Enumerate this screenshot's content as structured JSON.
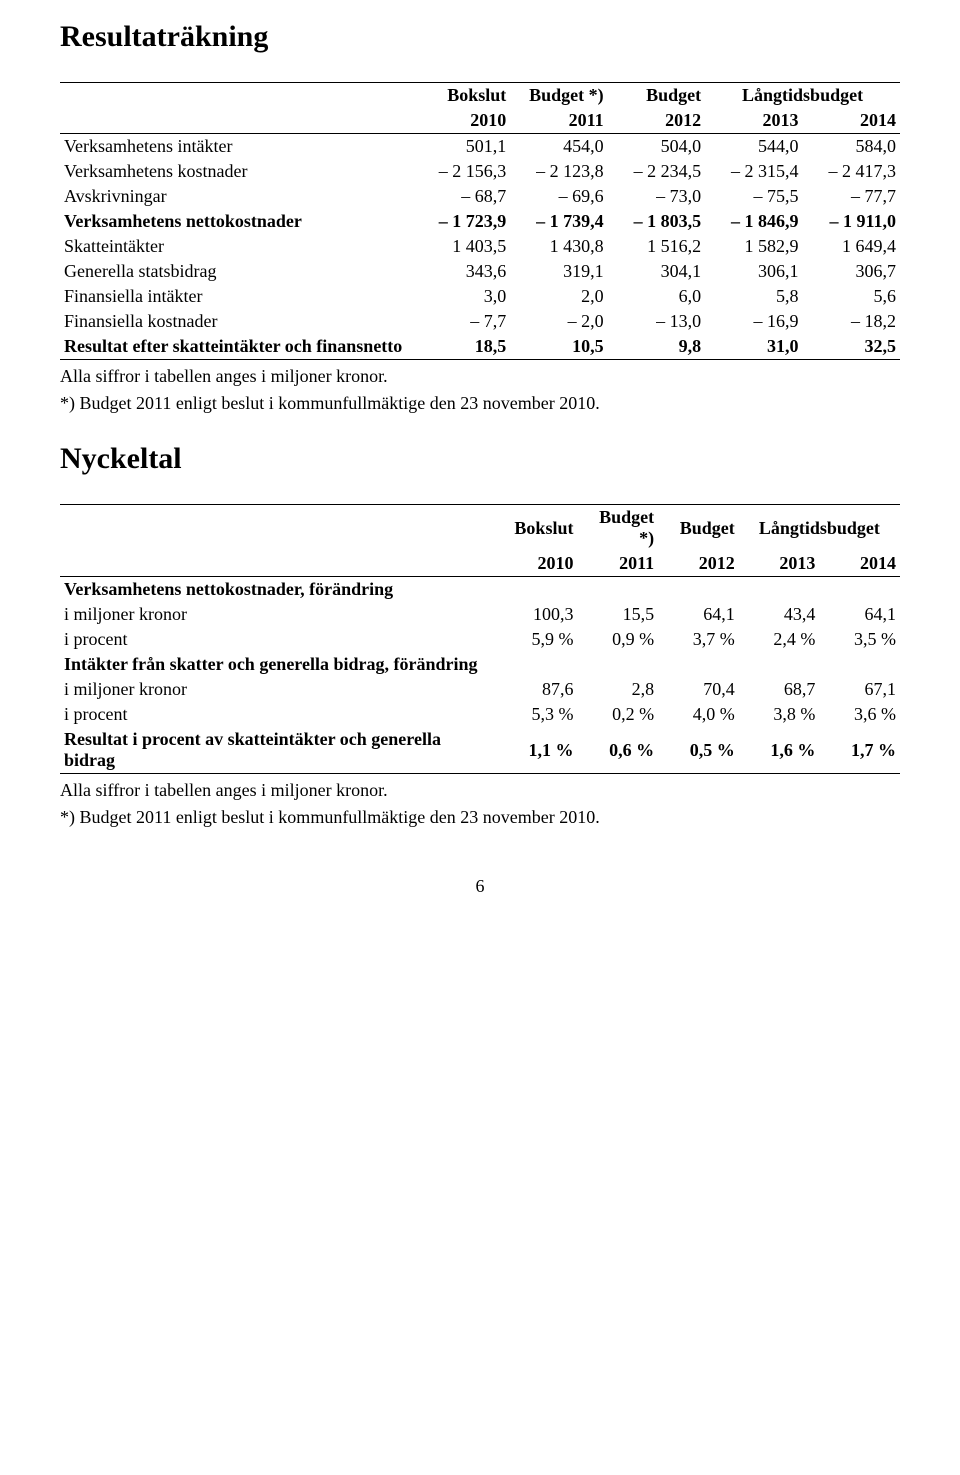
{
  "section1": {
    "title": "Resultaträkning",
    "header_top": [
      "Bokslut",
      "Budget *)",
      "Budget",
      "Långtidsbudget"
    ],
    "header_years": [
      "2010",
      "2011",
      "2012",
      "2013",
      "2014"
    ],
    "rows": [
      {
        "label": "Verksamhetens intäkter",
        "v": [
          "501,1",
          "454,0",
          "504,0",
          "544,0",
          "584,0"
        ],
        "bold": false
      },
      {
        "label": "Verksamhetens kostnader",
        "v": [
          "– 2 156,3",
          "– 2 123,8",
          "– 2 234,5",
          "– 2 315,4",
          "– 2 417,3"
        ],
        "bold": false
      },
      {
        "label": "Avskrivningar",
        "v": [
          "– 68,7",
          "– 69,6",
          "– 73,0",
          "– 75,5",
          "– 77,7"
        ],
        "bold": false
      },
      {
        "label": "Verksamhetens nettokostnader",
        "v": [
          "– 1 723,9",
          "– 1 739,4",
          "– 1 803,5",
          "– 1 846,9",
          "– 1 911,0"
        ],
        "bold": true
      },
      {
        "label": "Skatteintäkter",
        "v": [
          "1 403,5",
          "1 430,8",
          "1 516,2",
          "1 582,9",
          "1 649,4"
        ],
        "bold": false
      },
      {
        "label": "Generella statsbidrag",
        "v": [
          "343,6",
          "319,1",
          "304,1",
          "306,1",
          "306,7"
        ],
        "bold": false
      },
      {
        "label": "Finansiella intäkter",
        "v": [
          "3,0",
          "2,0",
          "6,0",
          "5,8",
          "5,6"
        ],
        "bold": false
      },
      {
        "label": "Finansiella kostnader",
        "v": [
          "– 7,7",
          "– 2,0",
          "– 13,0",
          "– 16,9",
          "– 18,2"
        ],
        "bold": false
      },
      {
        "label": "Resultat efter skatteintäkter och finansnetto",
        "v": [
          "18,5",
          "10,5",
          "9,8",
          "31,0",
          "32,5"
        ],
        "bold": true
      }
    ],
    "note1": "Alla siffror i tabellen anges i miljoner kronor.",
    "note2": "*) Budget 2011 enligt beslut i kommunfullmäktige den 23 november 2010."
  },
  "section2": {
    "title": "Nyckeltal",
    "header_top": [
      "Bokslut",
      "Budget *)",
      "Budget",
      "Långtidsbudget"
    ],
    "header_years": [
      "2010",
      "2011",
      "2012",
      "2013",
      "2014"
    ],
    "rows": [
      {
        "label": "Verksamhetens nettokostnader, förändring",
        "v": [
          "",
          "",
          "",
          "",
          ""
        ],
        "bold": true
      },
      {
        "label": "i miljoner kronor",
        "v": [
          "100,3",
          "15,5",
          "64,1",
          "43,4",
          "64,1"
        ],
        "bold": false
      },
      {
        "label": "i procent",
        "v": [
          "5,9 %",
          "0,9 %",
          "3,7 %",
          "2,4 %",
          "3,5 %"
        ],
        "bold": false
      },
      {
        "label": "Intäkter från skatter och generella bidrag, förändring",
        "v": [
          "",
          "",
          "",
          "",
          ""
        ],
        "bold": true
      },
      {
        "label": "i miljoner kronor",
        "v": [
          "87,6",
          "2,8",
          "70,4",
          "68,7",
          "67,1"
        ],
        "bold": false
      },
      {
        "label": "i procent",
        "v": [
          "5,3 %",
          "0,2 %",
          "4,0 %",
          "3,8 %",
          "3,6 %"
        ],
        "bold": false
      },
      {
        "label": "Resultat i procent av skatteintäkter och generella bidrag",
        "v": [
          "1,1 %",
          "0,6 %",
          "0,5 %",
          "1,6 %",
          "1,7 %"
        ],
        "bold": true
      }
    ],
    "note1": "Alla siffror i tabellen anges i miljoner kronor.",
    "note2": "*) Budget 2011 enligt beslut i kommunfullmäktige den 23 november 2010."
  },
  "pagenum": "6"
}
